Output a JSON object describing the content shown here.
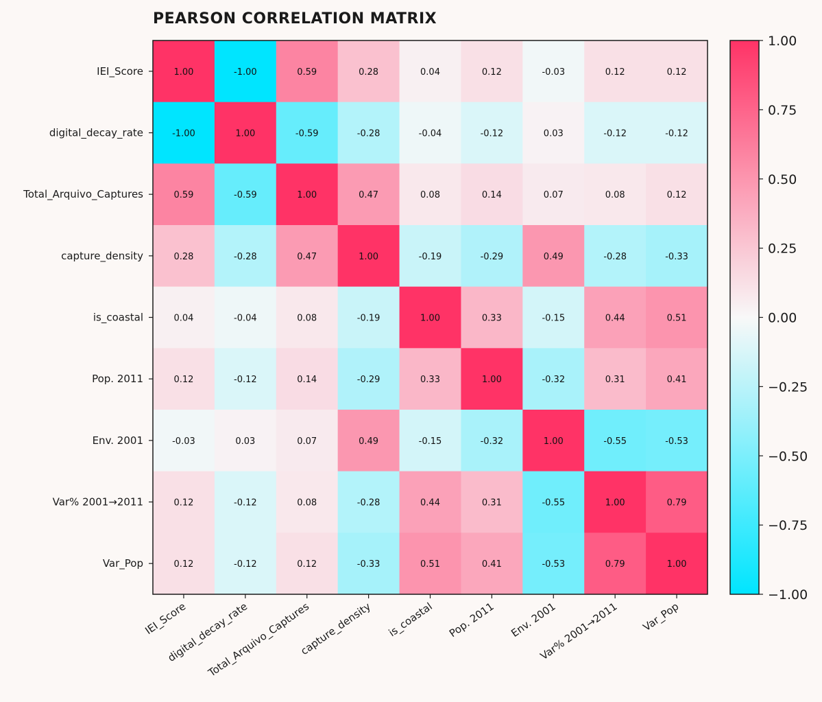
{
  "chart_data": {
    "type": "heatmap",
    "title": "PEARSON CORRELATION MATRIX",
    "labels": [
      "IEI_Score",
      "digital_decay_rate",
      "Total_Arquivo_Captures",
      "capture_density",
      "is_coastal",
      "Pop. 2011",
      "Env. 2001",
      "Var% 2001→2011",
      "Var_Pop"
    ],
    "values": [
      [
        1.0,
        -1.0,
        0.59,
        0.28,
        0.04,
        0.12,
        -0.03,
        0.12,
        0.12
      ],
      [
        -1.0,
        1.0,
        -0.59,
        -0.28,
        -0.04,
        -0.12,
        0.03,
        -0.12,
        -0.12
      ],
      [
        0.59,
        -0.59,
        1.0,
        0.47,
        0.08,
        0.14,
        0.07,
        0.08,
        0.12
      ],
      [
        0.28,
        -0.28,
        0.47,
        1.0,
        -0.19,
        -0.29,
        0.49,
        -0.28,
        -0.33
      ],
      [
        0.04,
        -0.04,
        0.08,
        -0.19,
        1.0,
        0.33,
        -0.15,
        0.44,
        0.51
      ],
      [
        0.12,
        -0.12,
        0.14,
        -0.29,
        0.33,
        1.0,
        -0.32,
        0.31,
        0.41
      ],
      [
        -0.03,
        0.03,
        0.07,
        0.49,
        -0.15,
        -0.32,
        1.0,
        -0.55,
        -0.53
      ],
      [
        0.12,
        -0.12,
        0.08,
        -0.28,
        0.44,
        0.31,
        -0.55,
        1.0,
        0.79
      ],
      [
        0.12,
        -0.12,
        0.12,
        -0.33,
        0.51,
        0.41,
        -0.53,
        0.79,
        1.0
      ]
    ],
    "value_range": [
      -1.0,
      1.0
    ],
    "colorbar_ticks": [
      "1.00",
      "0.75",
      "0.50",
      "0.25",
      "0.00",
      "−0.25",
      "−0.50",
      "−0.75",
      "−1.00"
    ],
    "colors": {
      "negative": "#00e5ff",
      "neutral": "#f8f8f8",
      "positive": "#ff3366"
    },
    "legend": "colorbar-right"
  }
}
